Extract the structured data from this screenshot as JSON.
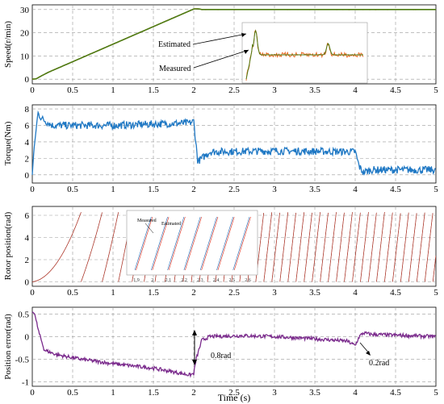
{
  "figure": {
    "x_label": "Time (s)",
    "x_ticks": [
      "0",
      "0.5",
      "1",
      "1.5",
      "2",
      "2.5",
      "3",
      "3.5",
      "4",
      "4.5",
      "5"
    ]
  },
  "chart_data": [
    {
      "type": "line",
      "ylabel": "Speed(r/min)",
      "xlim": [
        0,
        5
      ],
      "ylim": [
        -2,
        32
      ],
      "y_ticks": [
        "0",
        "10",
        "20",
        "30"
      ],
      "grid": true,
      "series": [
        {
          "name": "Estimated",
          "color": "#e8631a",
          "x": [
            0,
            0.05,
            0.1,
            0.2,
            2.0,
            2.05,
            2.1,
            5.0
          ],
          "y": [
            0,
            0.2,
            1.2,
            3.0,
            30.2,
            30.3,
            30.0,
            30.0
          ]
        },
        {
          "name": "Measured",
          "color": "#4d7a12",
          "x": [
            0,
            0.05,
            0.1,
            0.2,
            2.0,
            2.05,
            2.1,
            5.0
          ],
          "y": [
            0,
            0.2,
            1.2,
            3.0,
            30.2,
            30.3,
            30.0,
            30.0
          ]
        }
      ],
      "annotations": [
        "Estimated",
        "Measured"
      ]
    },
    {
      "type": "line",
      "ylabel": "Torque(Nm)",
      "xlim": [
        0,
        5
      ],
      "ylim": [
        -1,
        8.5
      ],
      "y_ticks": [
        "0",
        "2",
        "4",
        "6",
        "8"
      ],
      "grid": true,
      "series": [
        {
          "name": "Torque",
          "color": "#1f78c4",
          "x": [
            0,
            0.02,
            0.07,
            0.12,
            0.25,
            1.0,
            1.95,
            2.0,
            2.05,
            2.1,
            2.2,
            3.0,
            4.0,
            4.05,
            4.1,
            4.2,
            5.0
          ],
          "y": [
            0,
            3.0,
            7.5,
            6.8,
            6.0,
            6.0,
            6.3,
            6.5,
            1.6,
            2.0,
            2.8,
            2.9,
            2.8,
            1.0,
            0.3,
            0.6,
            0.6
          ]
        }
      ]
    },
    {
      "type": "line",
      "ylabel": "Rotor position(rad)",
      "xlim": [
        0,
        5
      ],
      "ylim": [
        -0.4,
        6.8
      ],
      "y_ticks": [
        "0",
        "2",
        "4",
        "6"
      ],
      "grid": true,
      "series": [
        {
          "name": "Measured",
          "color": "#1a1a1a"
        },
        {
          "name": "Estimated",
          "color": "#e0301e"
        }
      ],
      "inset": {
        "x_ticks": [
          "1.9",
          "2",
          "2.1",
          "2.2",
          "2.3",
          "2.4",
          "2.5",
          "2.6"
        ],
        "legend": [
          "Measured",
          "Estimated"
        ]
      }
    },
    {
      "type": "line",
      "ylabel": "Position error(rad)",
      "xlim": [
        0,
        5
      ],
      "ylim": [
        -1.1,
        0.65
      ],
      "y_ticks": [
        "-1",
        "-0.5",
        "0",
        "0.5"
      ],
      "grid": true,
      "series": [
        {
          "name": "Position error",
          "color": "#7a2a8c",
          "x": [
            0,
            0.03,
            0.08,
            0.15,
            0.3,
            0.6,
            1.0,
            1.5,
            1.95,
            2.0,
            2.03,
            2.1,
            2.2,
            2.6,
            3.0,
            3.5,
            3.9,
            4.0,
            4.05,
            4.1,
            4.2,
            5.0
          ],
          "y": [
            0.55,
            0.5,
            0.1,
            -0.3,
            -0.4,
            -0.5,
            -0.6,
            -0.7,
            -0.85,
            -0.82,
            -0.5,
            -0.08,
            0.0,
            0.02,
            0.0,
            -0.05,
            -0.1,
            -0.2,
            0.0,
            0.08,
            0.05,
            0.0
          ]
        }
      ],
      "annotations": [
        "0.8rad",
        "0.2rad"
      ]
    }
  ]
}
